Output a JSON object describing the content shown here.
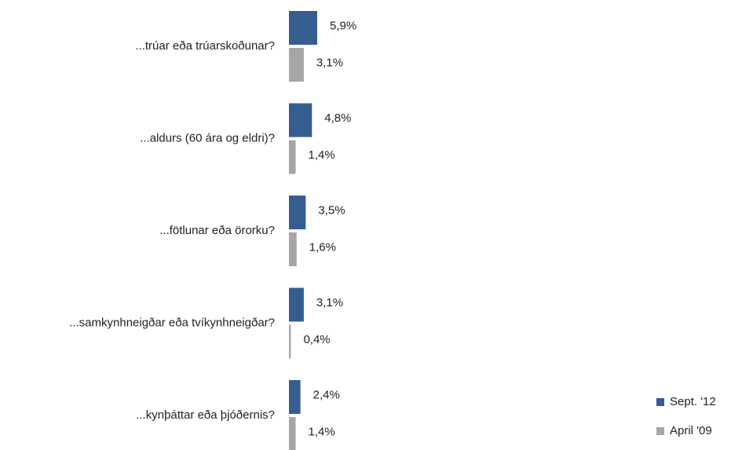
{
  "chart_data": {
    "type": "bar",
    "orientation": "horizontal",
    "categories": [
      "...trúar eða trúarskoðunar?",
      "...aldurs (60 ára og eldri)?",
      "...fötlunar eða örorku?",
      "...samkynhneigðar eða tvíkynhneigðar?",
      "...kynþáttar eða þjóðernis?"
    ],
    "series": [
      {
        "name": "Sept. '12",
        "color": "#355d8f",
        "values": [
          5.9,
          4.8,
          3.5,
          3.1,
          2.4
        ],
        "value_labels": [
          "5,9%",
          "4,8%",
          "3,5%",
          "3,1%",
          "2,4%"
        ]
      },
      {
        "name": "April '09",
        "color": "#a6a6a6",
        "values": [
          3.1,
          1.4,
          1.6,
          0.4,
          1.4
        ],
        "value_labels": [
          "3,1%",
          "1,4%",
          "1,6%",
          "0,4%",
          "1,4%"
        ]
      }
    ],
    "legend": "bottom-right"
  }
}
